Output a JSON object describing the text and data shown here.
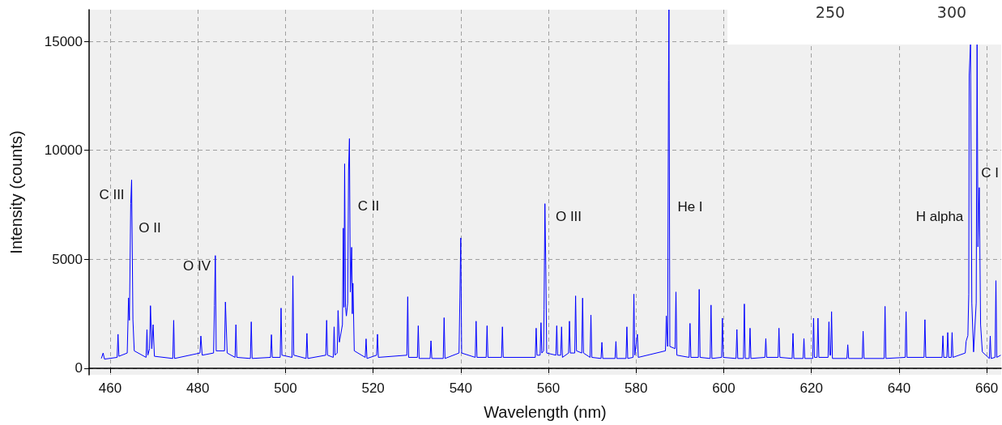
{
  "chart_data": {
    "type": "line",
    "xlabel": "Wavelength (nm)",
    "ylabel": "Intensity (counts)",
    "xlim": [
      455.2,
      663.3
    ],
    "ylim": [
      -300,
      16450
    ],
    "xticks": [
      460,
      480,
      500,
      520,
      540,
      560,
      580,
      600,
      620,
      640,
      660
    ],
    "yticks": [
      0,
      5000,
      10000,
      15000
    ],
    "grid": true,
    "marker": "none",
    "line_style": "solid",
    "annotations": [
      "C III",
      "O II",
      "O IV",
      "C II",
      "O III",
      "He I",
      "H alpha",
      "C I",
      "250",
      "300"
    ],
    "x": [
      458.0,
      458.4,
      458.7,
      461.6,
      461.8,
      462.0,
      463.9,
      464.2,
      464.4,
      464.7,
      464.9,
      465.2,
      465.5,
      468.2,
      468.4,
      468.6,
      469.0,
      469.2,
      469.5,
      469.8,
      470.1,
      474.3,
      474.5,
      474.7,
      480.5,
      480.7,
      481.0,
      483.6,
      483.8,
      484.0,
      484.2,
      486.1,
      486.3,
      486.7,
      488.5,
      488.7,
      488.9,
      492.0,
      492.2,
      492.4,
      496.6,
      496.8,
      497.0,
      498.8,
      499.0,
      499.2,
      501.5,
      501.7,
      501.9,
      504.7,
      504.9,
      505.1,
      509.2,
      509.4,
      509.6,
      510.9,
      511.1,
      511.3,
      511.8,
      512.0,
      512.3,
      513.0,
      513.2,
      513.35,
      513.5,
      513.7,
      513.9,
      514.2,
      514.4,
      514.6,
      514.8,
      515.1,
      515.25,
      515.4,
      515.7,
      518.2,
      518.4,
      518.6,
      520.8,
      521.0,
      521.2,
      527.7,
      527.9,
      528.1,
      530.1,
      530.3,
      530.5,
      533.0,
      533.2,
      533.4,
      536.0,
      536.2,
      536.4,
      539.6,
      539.8,
      540.0,
      540.2,
      543.3,
      543.5,
      543.7,
      545.8,
      546.0,
      546.2,
      549.3,
      549.5,
      549.7,
      557.0,
      557.2,
      557.4,
      558.1,
      558.3,
      558.5,
      558.9,
      559.0,
      559.2,
      559.4,
      559.6,
      561.7,
      561.9,
      562.1,
      562.8,
      563.0,
      563.2,
      564.6,
      564.8,
      565.0,
      566.0,
      566.2,
      566.4,
      567.6,
      567.8,
      568.0,
      569.5,
      569.7,
      569.9,
      572.0,
      572.2,
      572.4,
      575.2,
      575.4,
      575.6,
      577.7,
      577.9,
      578.1,
      579.3,
      579.5,
      579.7,
      580.3,
      580.5,
      586.7,
      586.9,
      587.2,
      587.4,
      587.5,
      587.7,
      588.9,
      589.1,
      589.3,
      592.1,
      592.3,
      592.5,
      594.2,
      594.4,
      594.6,
      596.9,
      597.1,
      597.3,
      599.5,
      599.7,
      599.9,
      602.8,
      603.0,
      603.2,
      604.5,
      604.7,
      604.9,
      605.8,
      606.0,
      606.2,
      609.4,
      609.6,
      609.8,
      612.4,
      612.6,
      612.8,
      615.6,
      615.8,
      616.0,
      618.1,
      618.3,
      618.5,
      620.3,
      620.5,
      620.7,
      621.3,
      621.5,
      621.7,
      623.8,
      624.0,
      624.2,
      624.4,
      624.6,
      624.8,
      628.1,
      628.3,
      628.5,
      631.6,
      631.8,
      632.0,
      636.6,
      636.8,
      637.0,
      641.4,
      641.6,
      641.8,
      645.7,
      645.9,
      646.1,
      649.8,
      650.0,
      650.2,
      650.9,
      651.1,
      651.3,
      651.9,
      652.1,
      652.3,
      655.1,
      655.3,
      655.7,
      655.9,
      656.0,
      656.3,
      656.6,
      657.0,
      657.6,
      657.8,
      658.0,
      658.3,
      658.6,
      659.0,
      660.6,
      660.8,
      661.0,
      661.9,
      662.1,
      662.3,
      663.2
    ],
    "series": [
      {
        "color": "#0000ff",
        "values": [
          450,
          700,
          420,
          500,
          1560,
          550,
          700,
          3230,
          2200,
          7550,
          8650,
          2230,
          800,
          500,
          1770,
          600,
          900,
          2870,
          900,
          2000,
          550,
          450,
          2200,
          450,
          700,
          1480,
          600,
          700,
          2870,
          5170,
          800,
          800,
          3040,
          700,
          500,
          2000,
          500,
          450,
          2130,
          450,
          500,
          1540,
          500,
          500,
          2760,
          600,
          500,
          4240,
          600,
          450,
          1600,
          450,
          600,
          2200,
          600,
          500,
          1900,
          600,
          700,
          2650,
          1200,
          2000,
          6430,
          2800,
          9380,
          2800,
          2400,
          3000,
          9060,
          10540,
          3500,
          5550,
          2500,
          3900,
          800,
          500,
          1350,
          450,
          600,
          1560,
          500,
          600,
          3280,
          500,
          500,
          1950,
          450,
          450,
          1260,
          450,
          450,
          2320,
          450,
          700,
          3230,
          5980,
          700,
          500,
          2160,
          500,
          500,
          1950,
          500,
          500,
          1900,
          500,
          500,
          1840,
          600,
          600,
          2090,
          700,
          800,
          2700,
          7550,
          4720,
          700,
          600,
          1950,
          600,
          600,
          1900,
          500,
          700,
          2160,
          700,
          700,
          3320,
          800,
          700,
          3220,
          700,
          500,
          2440,
          500,
          450,
          1190,
          450,
          450,
          1230,
          450,
          450,
          1900,
          450,
          500,
          3400,
          600,
          1560,
          500,
          800,
          2400,
          1000,
          13200,
          16450,
          1000,
          900,
          3500,
          600,
          500,
          2060,
          500,
          500,
          3620,
          500,
          450,
          2900,
          450,
          500,
          2300,
          500,
          450,
          1780,
          450,
          450,
          2950,
          450,
          450,
          1840,
          450,
          500,
          1360,
          500,
          500,
          1840,
          500,
          450,
          1600,
          450,
          450,
          1360,
          450,
          450,
          2300,
          500,
          500,
          2300,
          500,
          500,
          2130,
          600,
          600,
          2600,
          450,
          450,
          1080,
          450,
          450,
          1700,
          450,
          450,
          2840,
          450,
          500,
          2600,
          500,
          500,
          2230,
          500,
          500,
          1490,
          500,
          500,
          1640,
          500,
          500,
          1640,
          500,
          700,
          1240,
          1500,
          3400,
          13440,
          14850,
          3000,
          750,
          3000,
          14850,
          5570,
          8290,
          2000,
          750,
          450,
          1480,
          450,
          500,
          4020,
          500,
          600
        ]
      }
    ]
  }
}
